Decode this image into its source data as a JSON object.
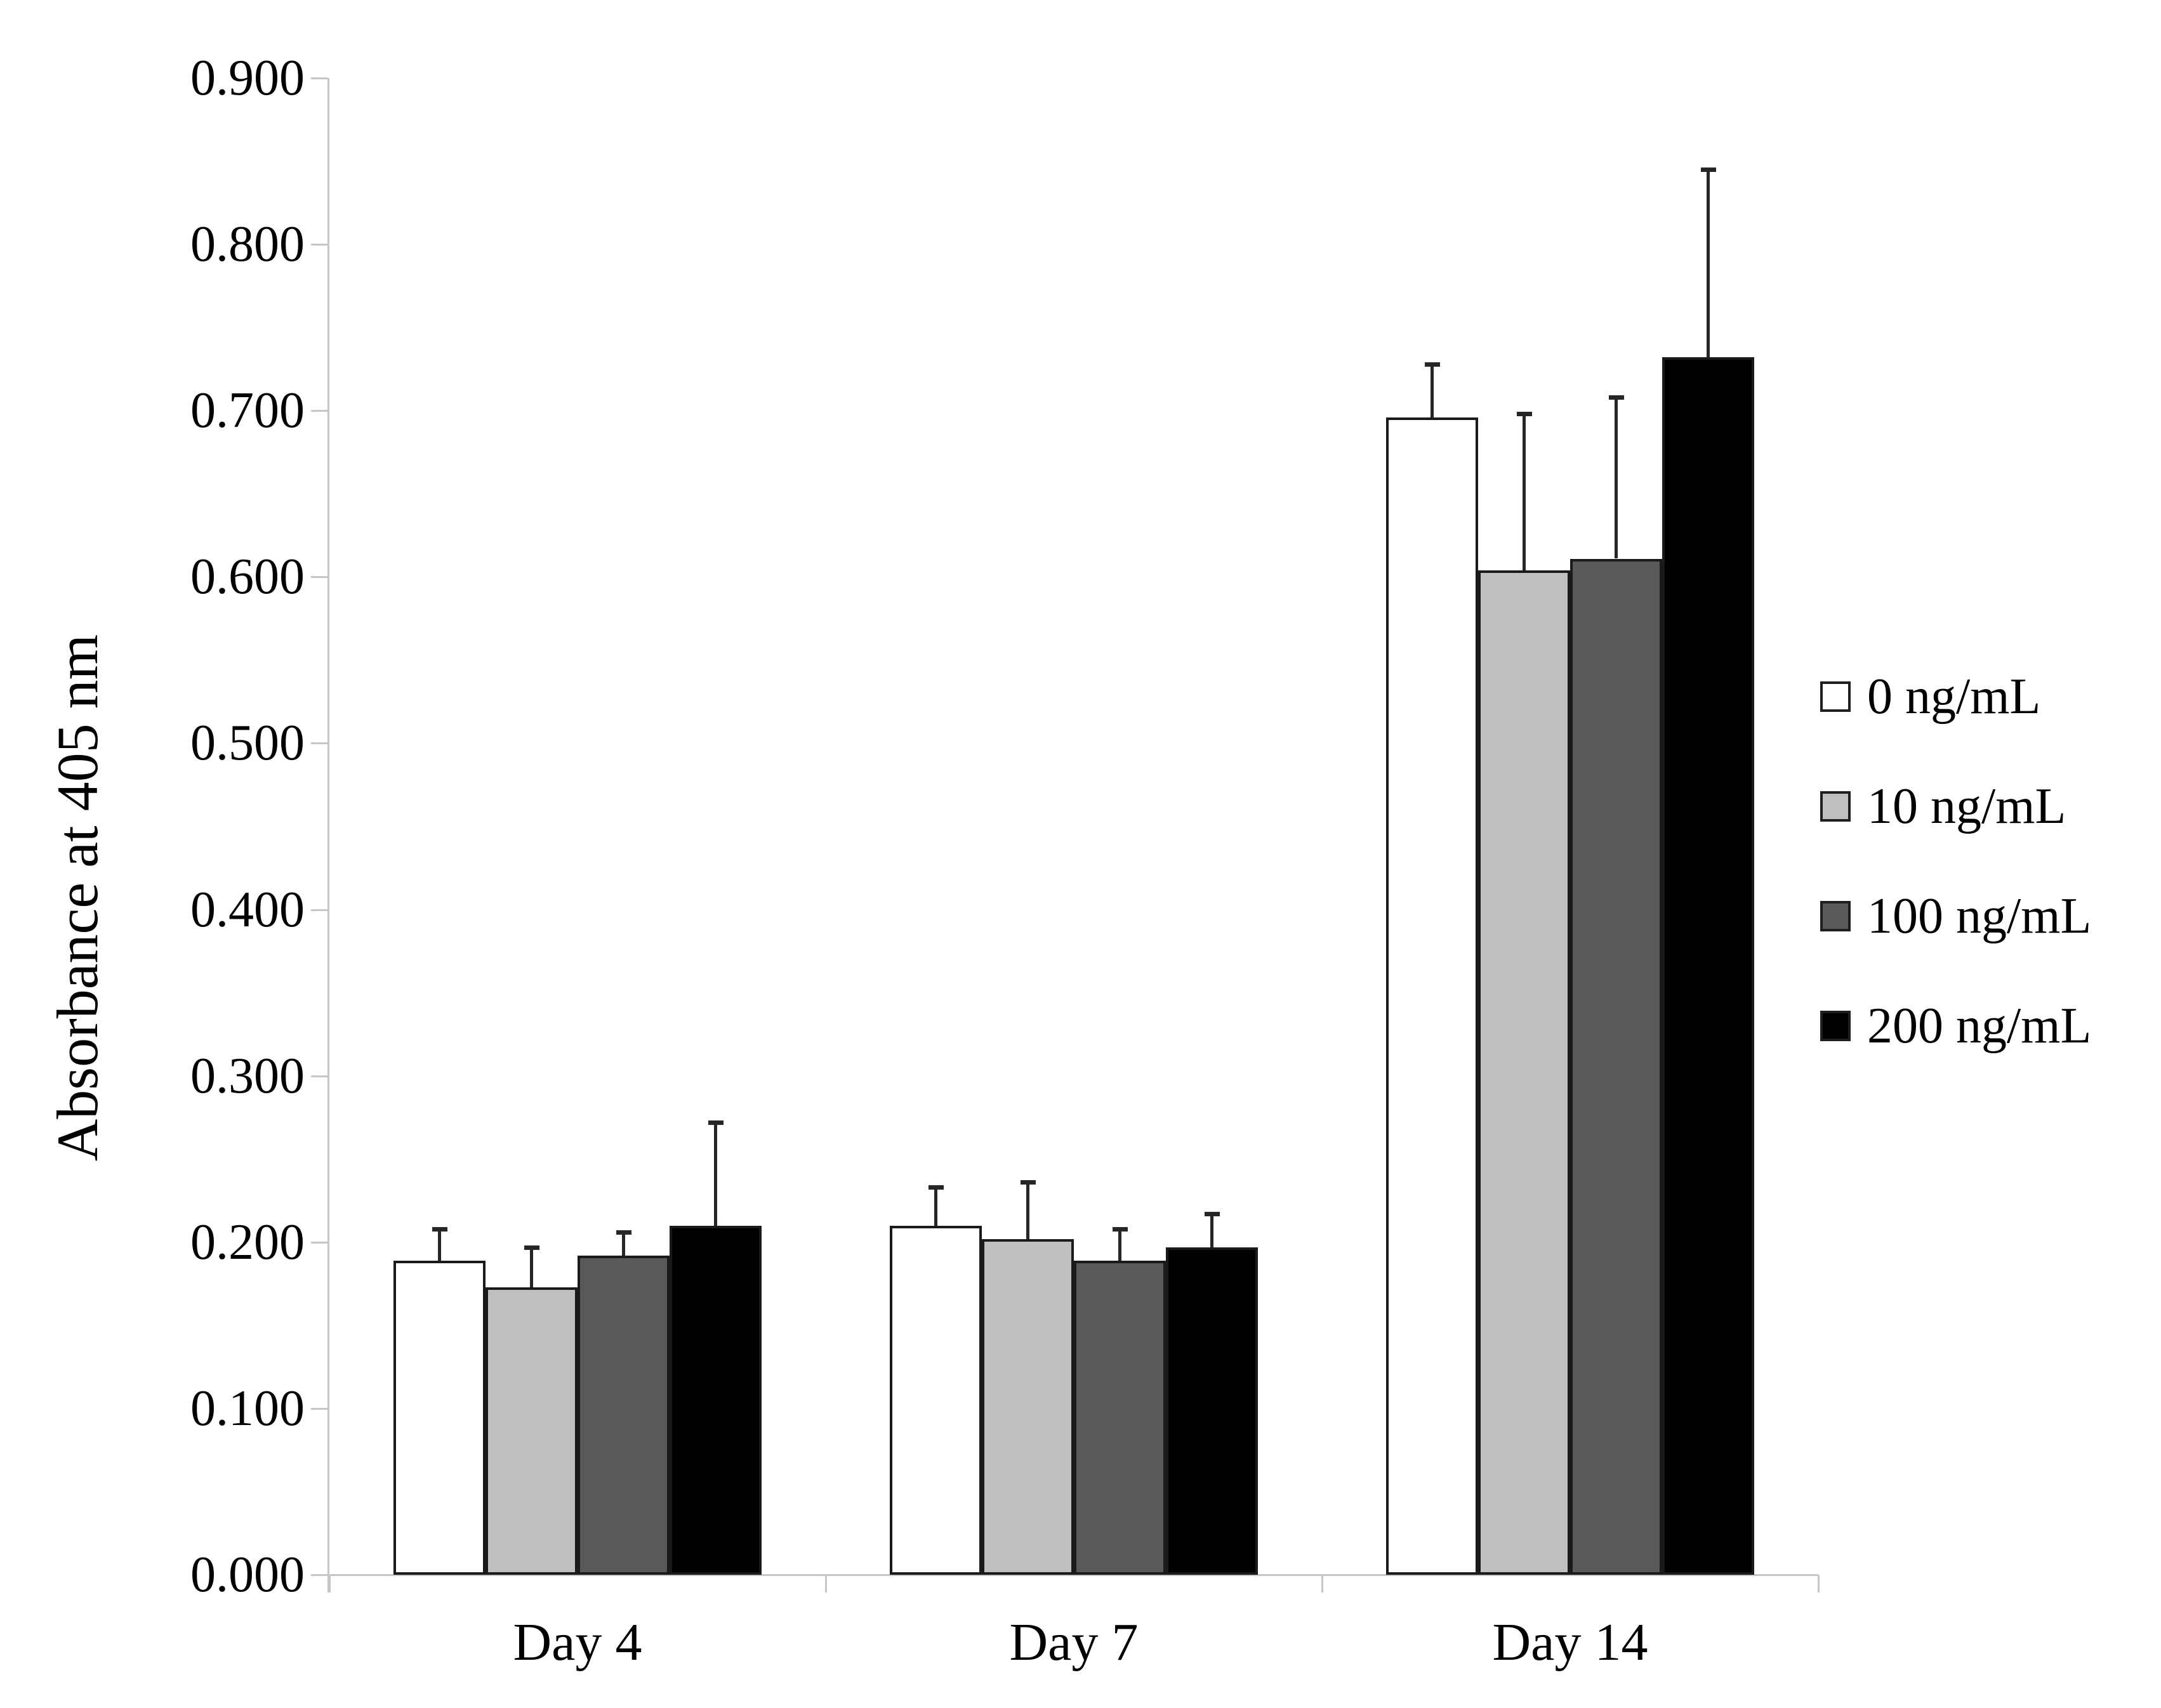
{
  "figure": {
    "background": "#ffffff"
  },
  "chart_data": {
    "type": "bar",
    "title": "",
    "xlabel": "",
    "ylabel": "Absorbance at 405 nm",
    "categories": [
      "Day 4",
      "Day 7",
      "Day 14"
    ],
    "series": [
      {
        "name": "0 ng/mL",
        "fill": "#ffffff",
        "values": [
          0.189,
          0.21,
          0.696
        ],
        "errors_plus": [
          0.019,
          0.023,
          0.032
        ]
      },
      {
        "name": "10 ng/mL",
        "fill": "#bfbfbf",
        "values": [
          0.173,
          0.202,
          0.604
        ],
        "errors_plus": [
          0.024,
          0.034,
          0.094
        ]
      },
      {
        "name": "100 ng/mL",
        "fill": "#595959",
        "values": [
          0.192,
          0.189,
          0.611
        ],
        "errors_plus": [
          0.014,
          0.019,
          0.097
        ]
      },
      {
        "name": "200 ng/mL",
        "fill": "#000000",
        "values": [
          0.21,
          0.197,
          0.732
        ],
        "errors_plus": [
          0.062,
          0.02,
          0.113
        ]
      }
    ],
    "y_axis": {
      "min": 0.0,
      "max": 0.9,
      "step": 0.1,
      "tick_labels": [
        "0.000",
        "0.100",
        "0.200",
        "0.300",
        "0.400",
        "0.500",
        "0.600",
        "0.700",
        "0.800",
        "0.900"
      ]
    },
    "legend": {
      "position": "right",
      "entries": [
        "0 ng/mL",
        "10 ng/mL",
        "100 ng/mL",
        "200 ng/mL"
      ]
    },
    "grid": false,
    "error_bars": "plus_direction_with_caps",
    "colors": {
      "axis": "#c6c6c6",
      "bar_border": "#1a1a1a",
      "error_bar": "#262626",
      "text": "#000000"
    }
  }
}
